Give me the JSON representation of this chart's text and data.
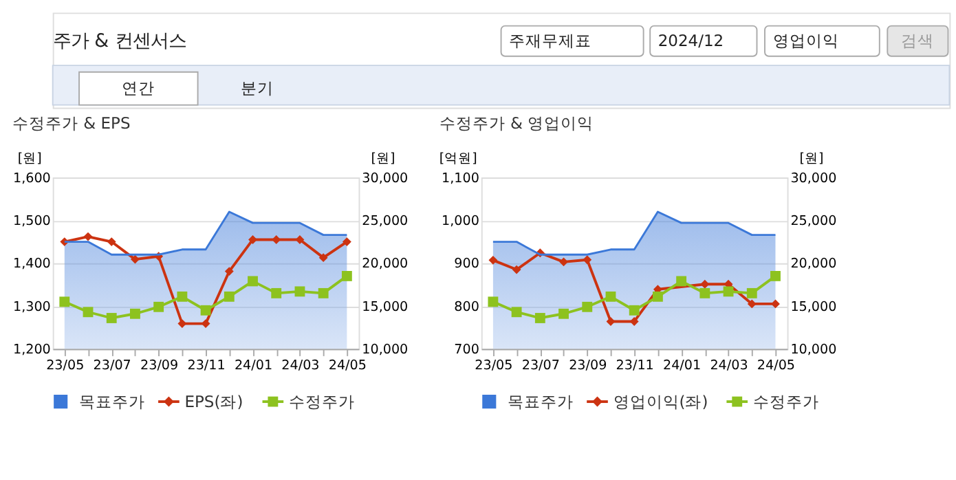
{
  "chart_data": [
    {
      "type": "other",
      "title": "주가 & 컨센서스",
      "annotations": [
        "주재무제표",
        "2024/12",
        "영업이익",
        "검색",
        "연간",
        "분기"
      ]
    },
    {
      "type": "line",
      "title": "수정주가 & EPS",
      "ylabel": "[원]",
      "y2label": "[원]",
      "categories": [
        "23/05",
        null,
        "23/07",
        null,
        "23/09",
        null,
        "23/11",
        null,
        "24/01",
        null,
        "24/03",
        null,
        "24/05"
      ],
      "ylim": [
        1200,
        1600
      ],
      "yticks": [
        {
          "value": 1200,
          "label": "1,200"
        },
        {
          "value": 1300,
          "label": "1,300"
        },
        {
          "value": 1400,
          "label": "1,400"
        },
        {
          "value": 1500,
          "label": "1,500"
        },
        {
          "value": 1600,
          "label": "1,600"
        }
      ],
      "y2lim": [
        10000,
        30000
      ],
      "y2ticks": [
        {
          "value": 10000,
          "label": "10,000"
        },
        {
          "value": 15000,
          "label": "15,000"
        },
        {
          "value": 20000,
          "label": "20,000"
        },
        {
          "value": 25000,
          "label": "25,000"
        },
        {
          "value": 30000,
          "label": "30,000"
        }
      ],
      "grid": "y",
      "legend": "bottom",
      "series": [
        {
          "name": "목표주가",
          "type": "area",
          "axis": "y2",
          "color": "#3b78d8",
          "marker": "none",
          "values": [
            22500,
            22500,
            21000,
            21000,
            21000,
            21600,
            21600,
            26000,
            24700,
            24700,
            24700,
            23300,
            23300
          ]
        },
        {
          "name": "EPS(좌)",
          "type": "line",
          "color": "#cc3311",
          "marker": "diamond",
          "values": [
            1450,
            1462,
            1450,
            1409,
            1416,
            1259,
            1259,
            1381,
            1455,
            1455,
            1455,
            1413,
            1450
          ]
        },
        {
          "name": "수정주가",
          "type": "line",
          "axis": "y2",
          "color": "#8dc21f",
          "marker": "square",
          "values": [
            15500,
            14300,
            13600,
            14100,
            14900,
            16100,
            14500,
            16100,
            17900,
            16500,
            16700,
            16500,
            18500
          ]
        }
      ]
    },
    {
      "type": "line",
      "title": "수정주가 & 영업이익",
      "ylabel": "[억원]",
      "y2label": "[원]",
      "categories": [
        "23/05",
        null,
        "23/07",
        null,
        "23/09",
        null,
        "23/11",
        null,
        "24/01",
        null,
        "24/03",
        null,
        "24/05"
      ],
      "ylim": [
        700,
        1100
      ],
      "yticks": [
        700,
        800,
        900,
        {
          "value": 1000,
          "label": "1,000"
        },
        {
          "value": 1100,
          "label": "1,100"
        }
      ],
      "y2lim": [
        10000,
        30000
      ],
      "y2ticks": [
        {
          "value": 10000,
          "label": "10,000"
        },
        {
          "value": 15000,
          "label": "15,000"
        },
        {
          "value": 20000,
          "label": "20,000"
        },
        {
          "value": 25000,
          "label": "25,000"
        },
        {
          "value": 30000,
          "label": "30,000"
        }
      ],
      "grid": "y",
      "legend": "bottom",
      "series": [
        {
          "name": "목표주가",
          "type": "area",
          "axis": "y2",
          "color": "#3b78d8",
          "marker": "none",
          "values": [
            22500,
            22500,
            21000,
            21000,
            21000,
            21600,
            21600,
            26000,
            24700,
            24700,
            24700,
            23300,
            23300
          ]
        },
        {
          "name": "영업이익(좌)",
          "type": "line",
          "color": "#cc3311",
          "marker": "diamond",
          "values": [
            907,
            885,
            924,
            903,
            908,
            764,
            764,
            839,
            null,
            851,
            851,
            805,
            805
          ]
        },
        {
          "name": "수정주가",
          "type": "line",
          "axis": "y2",
          "color": "#8dc21f",
          "marker": "square",
          "values": [
            15500,
            14300,
            13600,
            14100,
            14900,
            16100,
            14500,
            16100,
            17900,
            16500,
            16700,
            16500,
            18500
          ]
        }
      ]
    }
  ]
}
